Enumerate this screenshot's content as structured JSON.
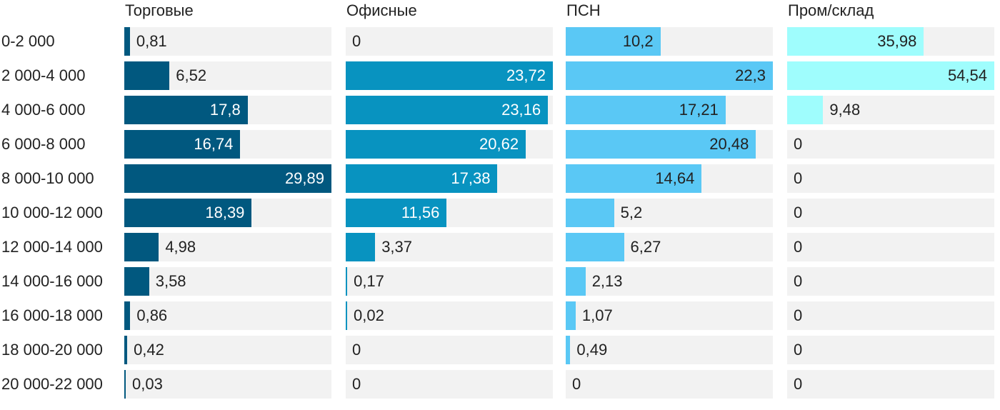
{
  "chart_data": {
    "type": "bar",
    "orientation": "horizontal",
    "layout": "small-multiples",
    "categories": [
      "0-2 000",
      "2 000-4 000",
      "4 000-6 000",
      "6 000-8 000",
      "8 000-10 000",
      "10 000-12 000",
      "12 000-14 000",
      "14 000-16 000",
      "16 000-18 000",
      "18 000-20 000",
      "20 000-22 000"
    ],
    "series": [
      {
        "name": "Торговые",
        "color": "#01587f",
        "values": [
          0.81,
          6.52,
          17.8,
          16.74,
          29.89,
          18.39,
          4.98,
          3.58,
          0.86,
          0.42,
          0.03
        ],
        "labels": [
          "0,81",
          "6,52",
          "17,8",
          "16,74",
          "29,89",
          "18,39",
          "4,98",
          "3,58",
          "0,86",
          "0,42",
          "0,03"
        ]
      },
      {
        "name": "Офисные",
        "color": "#0893c0",
        "values": [
          0,
          23.72,
          23.16,
          20.62,
          17.38,
          11.56,
          3.37,
          0.17,
          0.02,
          0,
          0
        ],
        "labels": [
          "0",
          "23,72",
          "23,16",
          "20,62",
          "17,38",
          "11,56",
          "3,37",
          "0,17",
          "0,02",
          "0",
          "0"
        ]
      },
      {
        "name": "ПСН",
        "color": "#5ac8f5",
        "values": [
          10.2,
          22.3,
          17.21,
          20.48,
          14.64,
          5.2,
          6.27,
          2.13,
          1.07,
          0.49,
          0
        ],
        "labels": [
          "10,2",
          "22,3",
          "17,21",
          "20,48",
          "14,64",
          "5,2",
          "6,27",
          "2,13",
          "1,07",
          "0,49",
          "0"
        ]
      },
      {
        "name": "Пром/склад",
        "color": "#9ffdfd",
        "values": [
          35.98,
          54.54,
          9.48,
          0,
          0,
          0,
          0,
          0,
          0,
          0,
          0
        ],
        "labels": [
          "35,98",
          "54,54",
          "9,48",
          "0",
          "0",
          "0",
          "0",
          "0",
          "0",
          "0",
          "0"
        ]
      }
    ],
    "xlim": [
      [
        0,
        29.89
      ],
      [
        0,
        23.72
      ],
      [
        0,
        22.3
      ],
      [
        0,
        54.54
      ]
    ],
    "grid": false,
    "legend": "none"
  }
}
